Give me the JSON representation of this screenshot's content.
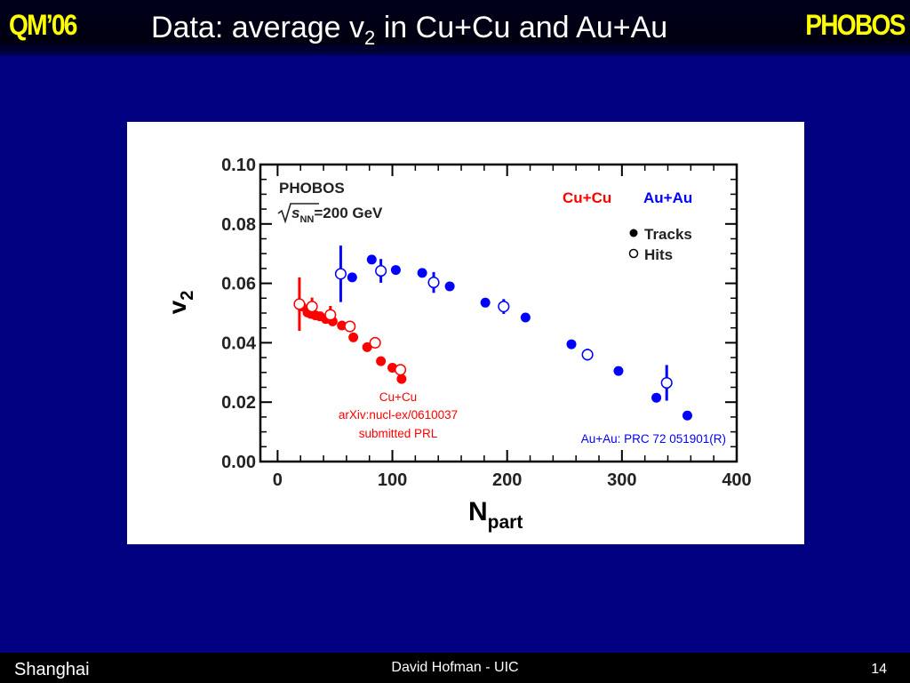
{
  "slide": {
    "conference": "QM’06",
    "title_main": "Data: average v",
    "title_sub": "2",
    "title_rest": " in Cu+Cu and Au+Au",
    "experiment": "PHOBOS",
    "footer_left": "Shanghai",
    "footer_center": "David Hofman - UIC",
    "page_number": "14"
  },
  "chart_data": {
    "type": "scatter",
    "xlabel": "N",
    "xlabel_sub": "part",
    "ylabel": "v",
    "ylabel_sub": "2",
    "xlim": [
      -15,
      400
    ],
    "ylim": [
      0,
      0.1
    ],
    "x_ticks": [
      "0",
      "100",
      "200",
      "300",
      "400"
    ],
    "y_ticks": [
      "0.00",
      "0.02",
      "0.04",
      "0.06",
      "0.08",
      "0.10"
    ],
    "grid": false,
    "colors": {
      "cucu": "#ff0000",
      "auau": "#0000ff"
    },
    "legend": {
      "experiment": "PHOBOS",
      "energy_prefix": "s",
      "energy_sub": "NN",
      "energy_rest": "=200 GeV",
      "cucu_label": "Cu+Cu",
      "auau_label": "Au+Au",
      "tracks_label": "Tracks",
      "hits_label": "Hits",
      "placement": "top-right"
    },
    "annotations": {
      "cucu_ref": [
        "Cu+Cu",
        "arXiv:nucl-ex/0610037",
        "submitted PRL"
      ],
      "auau_ref": "Au+Au: PRC 72 051901(R)"
    },
    "series": [
      {
        "system": "Cu+Cu",
        "method": "Tracks",
        "color": "#ff0000",
        "filled": true,
        "x": [
          21,
          26,
          29,
          33,
          37,
          42,
          48,
          56,
          66,
          78,
          90,
          100,
          108
        ],
        "y": [
          0.0522,
          0.0502,
          0.0497,
          0.0492,
          0.0489,
          0.048,
          0.0472,
          0.0458,
          0.0418,
          0.0385,
          0.0338,
          0.0316,
          0.0278
        ],
        "err": [
          0.001,
          0.001,
          0.001,
          0.001,
          0.001,
          0.001,
          0.001,
          0.001,
          0.001,
          0.0015,
          0.001,
          0.001,
          0.0015
        ]
      },
      {
        "system": "Cu+Cu",
        "method": "Hits",
        "color": "#ff0000",
        "filled": false,
        "x": [
          19,
          30,
          46,
          63,
          85,
          107
        ],
        "y": [
          0.053,
          0.0522,
          0.0494,
          0.0455,
          0.04,
          0.0309
        ],
        "err": [
          0.009,
          0.003,
          0.003,
          0.0015,
          0.0015,
          0.001
        ]
      },
      {
        "system": "Au+Au",
        "method": "Tracks",
        "color": "#0000ff",
        "filled": true,
        "x": [
          65,
          82,
          103,
          126,
          150,
          181,
          216,
          256,
          297,
          330,
          357
        ],
        "y": [
          0.062,
          0.068,
          0.0645,
          0.0635,
          0.059,
          0.0535,
          0.0485,
          0.0395,
          0.0305,
          0.0215,
          0.0155
        ],
        "err": [
          0.001,
          0.001,
          0.001,
          0.001,
          0.001,
          0.001,
          0.001,
          0.001,
          0.001,
          0.001,
          0.001
        ]
      },
      {
        "system": "Au+Au",
        "method": "Hits",
        "color": "#0000ff",
        "filled": false,
        "x": [
          55,
          90,
          136,
          197,
          270,
          339
        ],
        "y": [
          0.0632,
          0.0642,
          0.0603,
          0.0522,
          0.036,
          0.0265
        ],
        "err": [
          0.0095,
          0.004,
          0.0035,
          0.0025,
          0.002,
          0.006
        ]
      }
    ]
  }
}
